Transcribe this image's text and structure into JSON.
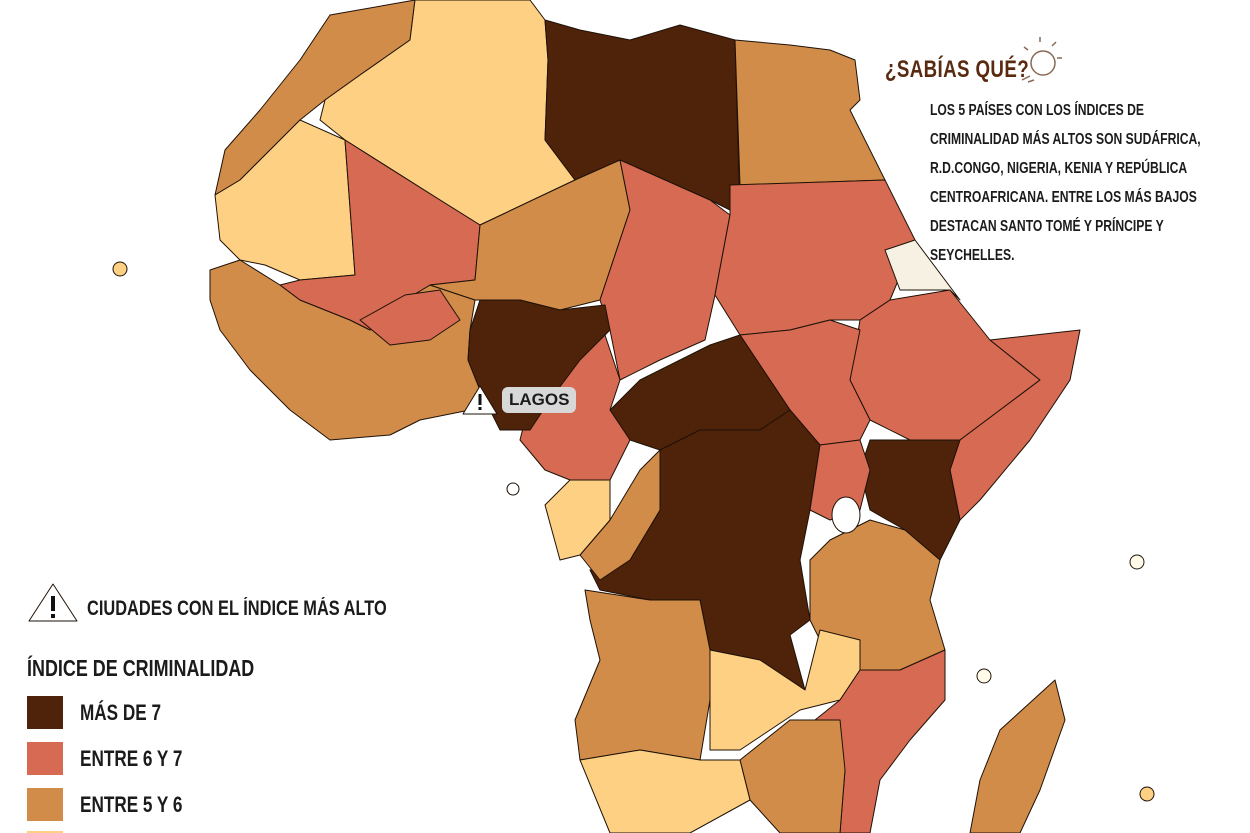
{
  "callout": {
    "title": "¿SABÍAS QUÉ?",
    "text": "LOS 5 PAÍSES CON LOS ÍNDICES DE CRIMINALIDAD MÁS ALTOS SON SUDÁFRICA, R.D.CONGO, NIGERIA, KENIA Y REPÚBLICA CENTROAFRICANA. ENTRE LOS MÁS BAJOS DESTACAN SANTO TOMÉ Y PRÍNCIPE Y SEYCHELLES."
  },
  "city_marker": {
    "label": "LAGOS"
  },
  "legend": {
    "cities_label": "CIUDADES CON EL ÍNDICE MÁS ALTO",
    "title": "ÍNDICE DE CRIMINALIDAD",
    "items": [
      {
        "label": "MÁS DE 7",
        "color": "#4f220a"
      },
      {
        "label": "ENTRE 6 Y 7",
        "color": "#d66a52"
      },
      {
        "label": "ENTRE 5 Y 6",
        "color": "#d08c48"
      }
    ]
  }
}
